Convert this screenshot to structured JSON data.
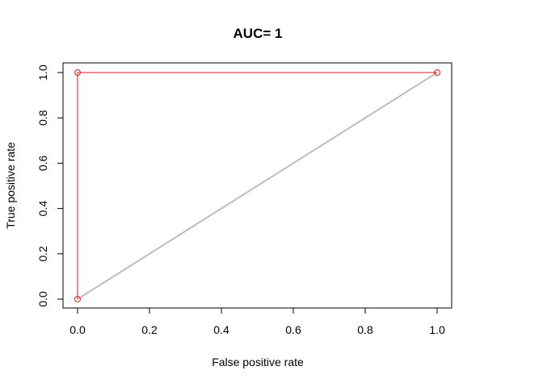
{
  "chart_data": {
    "type": "line",
    "title": "AUC= 1",
    "xlabel": "False positive rate",
    "ylabel": "True positive rate",
    "xlim": [
      0,
      1
    ],
    "ylim": [
      0,
      1
    ],
    "x_ticks": [
      "0.0",
      "0.2",
      "0.4",
      "0.6",
      "0.8",
      "1.0"
    ],
    "y_ticks": [
      "0.0",
      "0.2",
      "0.4",
      "0.6",
      "0.8",
      "1.0"
    ],
    "grid": false,
    "legend": "none",
    "series": [
      {
        "type": "line+points",
        "color": "#e41a1c",
        "x": [
          0,
          0,
          1
        ],
        "y": [
          0,
          1,
          1
        ]
      },
      {
        "type": "line",
        "color": "#bebebe",
        "x": [
          0,
          1
        ],
        "y": [
          0,
          1
        ]
      }
    ]
  }
}
